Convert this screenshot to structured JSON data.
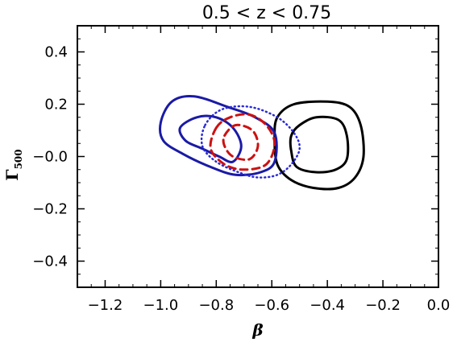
{
  "chart_data": {
    "type": "line",
    "title": "0.5 < z < 0.75",
    "xlabel": "β",
    "ylabel": "Γ500",
    "ylabel_main": "Γ",
    "ylabel_sub": "500",
    "xlim": [
      -1.3,
      0.0
    ],
    "ylim": [
      -0.5,
      0.5
    ],
    "xticks": [
      -1.2,
      -1.0,
      -0.8,
      -0.6,
      -0.4,
      -0.2,
      0.0
    ],
    "yticks": [
      -0.4,
      -0.2,
      0.0,
      0.2,
      0.4
    ],
    "xtick_labels": [
      "−1.2",
      "−1.0",
      "−0.8",
      "−0.6",
      "−0.4",
      "−0.2",
      "0.0"
    ],
    "ytick_labels": [
      "−0.4",
      "−0.2",
      "−0.0",
      "0.2",
      "0.4"
    ],
    "grid": false,
    "legend": "none",
    "series": [
      {
        "color": "#000000",
        "style": "solid",
        "contours": [
          [
            [
              -0.58,
              0.15
            ],
            [
              -0.52,
              0.2
            ],
            [
              -0.4,
              0.21
            ],
            [
              -0.32,
              0.19
            ],
            [
              -0.28,
              0.12
            ],
            [
              -0.27,
              0.0
            ],
            [
              -0.3,
              -0.08
            ],
            [
              -0.36,
              -0.12
            ],
            [
              -0.45,
              -0.12
            ],
            [
              -0.53,
              -0.09
            ],
            [
              -0.58,
              -0.03
            ],
            [
              -0.59,
              0.07
            ],
            [
              -0.58,
              0.15
            ]
          ],
          [
            [
              -0.5,
              0.12
            ],
            [
              -0.44,
              0.15
            ],
            [
              -0.36,
              0.14
            ],
            [
              -0.33,
              0.08
            ],
            [
              -0.33,
              -0.01
            ],
            [
              -0.37,
              -0.05
            ],
            [
              -0.44,
              -0.06
            ],
            [
              -0.51,
              -0.04
            ],
            [
              -0.53,
              0.02
            ],
            [
              -0.53,
              0.08
            ],
            [
              -0.5,
              0.12
            ]
          ]
        ]
      },
      {
        "color": "#1a1aa6",
        "style": "solid",
        "contours": [
          [
            [
              -1.0,
              0.13
            ],
            [
              -0.96,
              0.21
            ],
            [
              -0.88,
              0.23
            ],
            [
              -0.76,
              0.19
            ],
            [
              -0.66,
              0.15
            ],
            [
              -0.59,
              0.09
            ],
            [
              -0.59,
              -0.02
            ],
            [
              -0.64,
              -0.06
            ],
            [
              -0.73,
              -0.07
            ],
            [
              -0.82,
              -0.04
            ],
            [
              -0.92,
              0.01
            ],
            [
              -0.99,
              0.06
            ],
            [
              -1.0,
              0.13
            ]
          ],
          [
            [
              -0.93,
              0.11
            ],
            [
              -0.87,
              0.15
            ],
            [
              -0.8,
              0.15
            ],
            [
              -0.74,
              0.11
            ],
            [
              -0.71,
              0.04
            ],
            [
              -0.74,
              -0.02
            ],
            [
              -0.79,
              0.0
            ],
            [
              -0.85,
              0.03
            ],
            [
              -0.91,
              0.06
            ],
            [
              -0.93,
              0.11
            ]
          ]
        ]
      },
      {
        "color": "#cc1111",
        "style": "dashed",
        "contours": [
          [
            [
              -0.8,
              0.11
            ],
            [
              -0.75,
              0.15
            ],
            [
              -0.68,
              0.16
            ],
            [
              -0.62,
              0.12
            ],
            [
              -0.59,
              0.05
            ],
            [
              -0.62,
              -0.03
            ],
            [
              -0.7,
              -0.05
            ],
            [
              -0.77,
              -0.03
            ],
            [
              -0.82,
              0.03
            ],
            [
              -0.8,
              0.11
            ]
          ],
          [
            [
              -0.77,
              0.08
            ],
            [
              -0.73,
              0.12
            ],
            [
              -0.67,
              0.1
            ],
            [
              -0.65,
              0.04
            ],
            [
              -0.68,
              -0.01
            ],
            [
              -0.74,
              0.0
            ],
            [
              -0.77,
              0.04
            ],
            [
              -0.77,
              0.08
            ]
          ]
        ]
      },
      {
        "color": "#2a2ad6",
        "style": "dotted",
        "contours": [
          [
            [
              -0.84,
              0.12
            ],
            [
              -0.78,
              0.18
            ],
            [
              -0.68,
              0.19
            ],
            [
              -0.58,
              0.15
            ],
            [
              -0.52,
              0.09
            ],
            [
              -0.5,
              0.03
            ],
            [
              -0.53,
              -0.03
            ],
            [
              -0.58,
              -0.07
            ],
            [
              -0.65,
              -0.08
            ],
            [
              -0.72,
              -0.06
            ],
            [
              -0.8,
              -0.02
            ],
            [
              -0.85,
              0.04
            ],
            [
              -0.84,
              0.12
            ]
          ]
        ]
      }
    ]
  }
}
